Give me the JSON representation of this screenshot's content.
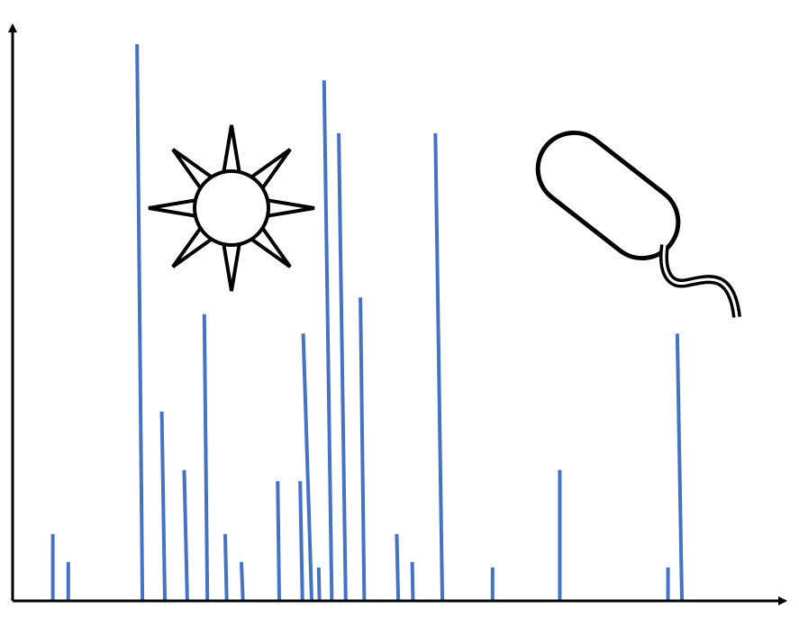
{
  "chart_data": {
    "type": "bar",
    "title": "",
    "xlabel": "",
    "ylabel": "",
    "grid": false,
    "legend": "none",
    "bar_color": "#4472C4",
    "xlim": [
      0,
      100
    ],
    "ylim": [
      0,
      100
    ],
    "bars": [
      {
        "x": 5.2,
        "x_top": 5.2,
        "y": 12
      },
      {
        "x": 7.2,
        "x_top": 7.2,
        "y": 7
      },
      {
        "x": 16.8,
        "x_top": 16.1,
        "y": 100
      },
      {
        "x": 19.7,
        "x_top": 19.3,
        "y": 34
      },
      {
        "x": 22.6,
        "x_top": 22.2,
        "y": 23.5
      },
      {
        "x": 25.2,
        "x_top": 24.8,
        "y": 51.5
      },
      {
        "x": 27.7,
        "x_top": 27.5,
        "y": 12
      },
      {
        "x": 29.8,
        "x_top": 29.6,
        "y": 7
      },
      {
        "x": 34.5,
        "x_top": 34.3,
        "y": 21.5
      },
      {
        "x": 37.5,
        "x_top": 37.2,
        "y": 21.5
      },
      {
        "x": 38.7,
        "x_top": 37.6,
        "y": 48
      },
      {
        "x": 39.7,
        "x_top": 39.6,
        "y": 6
      },
      {
        "x": 41.3,
        "x_top": 40.3,
        "y": 93.5
      },
      {
        "x": 43.1,
        "x_top": 42.2,
        "y": 84
      },
      {
        "x": 45.5,
        "x_top": 45.0,
        "y": 54.5
      },
      {
        "x": 49.9,
        "x_top": 49.7,
        "y": 12
      },
      {
        "x": 51.8,
        "x_top": 51.7,
        "y": 7
      },
      {
        "x": 55.6,
        "x_top": 54.7,
        "y": 84
      },
      {
        "x": 62.1,
        "x_top": 62.1,
        "y": 6
      },
      {
        "x": 70.8,
        "x_top": 70.8,
        "y": 23.5
      },
      {
        "x": 84.8,
        "x_top": 84.8,
        "y": 6
      },
      {
        "x": 86.6,
        "x_top": 86.0,
        "y": 48
      }
    ]
  },
  "icons": {
    "sun": "sun-icon",
    "bacterium": "bacterium-icon"
  },
  "colors": {
    "axis": "#000000",
    "bars": "#4472C4",
    "background": "#ffffff"
  }
}
